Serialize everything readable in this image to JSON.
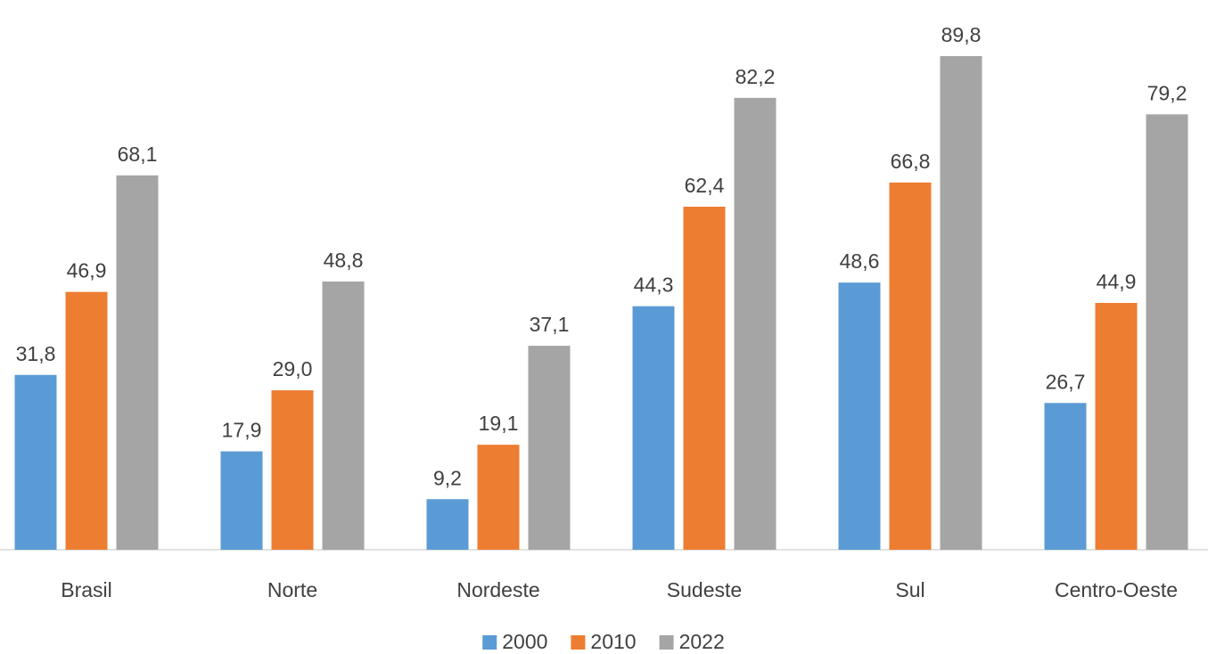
{
  "chart_data": {
    "type": "bar",
    "categories": [
      "Brasil",
      "Norte",
      "Nordeste",
      "Sudeste",
      "Sul",
      "Centro-Oeste"
    ],
    "series": [
      {
        "name": "2000",
        "color": "#5b9bd5",
        "values": [
          31.8,
          17.9,
          9.2,
          44.3,
          48.6,
          26.7
        ],
        "value_labels": [
          "31,8",
          "17,9",
          "9,2",
          "44,3",
          "48,6",
          "26,7"
        ]
      },
      {
        "name": "2010",
        "color": "#ed7d31",
        "values": [
          46.9,
          29.0,
          19.1,
          62.4,
          66.8,
          44.9
        ],
        "value_labels": [
          "46,9",
          "29,0",
          "19,1",
          "62,4",
          "66,8",
          "44,9"
        ]
      },
      {
        "name": "2022",
        "color": "#a5a5a5",
        "values": [
          68.1,
          48.8,
          37.1,
          82.2,
          89.8,
          79.2
        ],
        "value_labels": [
          "68,1",
          "48,8",
          "37,1",
          "82,2",
          "89,8",
          "79,2"
        ]
      }
    ],
    "ylim": [
      0,
      100
    ],
    "legend": "bottom"
  }
}
